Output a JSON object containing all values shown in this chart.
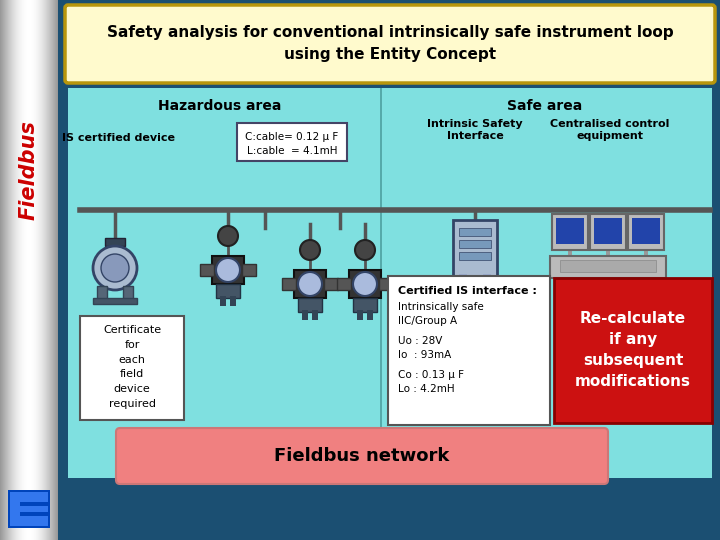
{
  "title_line1": "Safety analysis for conventional intrinsically safe instrument loop",
  "title_line2": "using the Entity Concept",
  "title_bg": "#FFFACD",
  "title_border": "#B8960C",
  "outer_bg": "#1B4F72",
  "main_bg": "#7FE0E0",
  "safe_bg": "#A8E8E8",
  "fieldbus_text": "Fieldbus",
  "fieldbus_color": "#CC0000",
  "hazardous_label": "Hazardous area",
  "safe_label": "Safe area",
  "is_device_label": "IS certified device",
  "intrinsic_label": "Intrinsic Safety\nInterface",
  "centralised_label": "Centralised control\nequipment",
  "cert_box_text": "Certificate\nfor\neach\nfield\ndevice\nrequired",
  "certified_box_title": "Certified IS interface :",
  "certified_box_line1": "Intrinsically safe",
  "certified_box_line2": "IIC/Group A",
  "certified_box_line3": "Uo : 28V",
  "certified_box_line4": "Io  : 93mA",
  "certified_box_line5": "Co : 0.13 μ F",
  "certified_box_line6": "Lo : 4.2mH",
  "recalc_text": "Re-calculate\nif any\nsubsequent\nmodifications",
  "recalc_bg": "#CC1111",
  "fieldbus_network": "Fieldbus network",
  "fieldbus_net_bg": "#F08080",
  "cable_line1": "C:cable= 0.12 μ F",
  "cable_line2": "L:cable  = 4.1mH"
}
